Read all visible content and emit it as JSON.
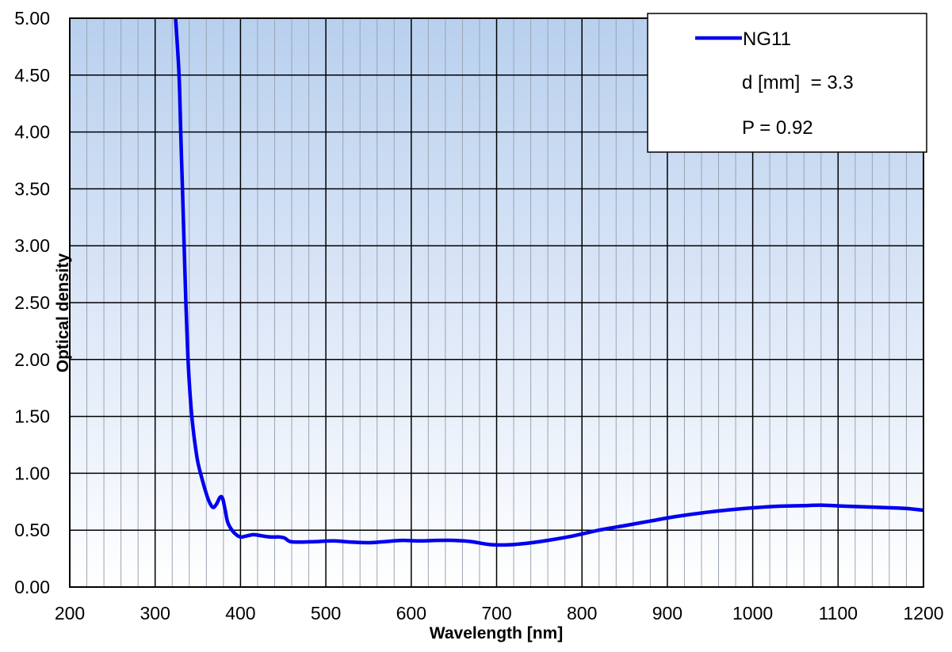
{
  "chart_data": {
    "type": "line",
    "xlabel": "Wavelength [nm]",
    "ylabel": "Optical density",
    "xlim": [
      200,
      1200
    ],
    "ylim": [
      0,
      5
    ],
    "x_ticks": [
      "200",
      "300",
      "400",
      "500",
      "600",
      "700",
      "800",
      "900",
      "1000",
      "1100",
      "1200"
    ],
    "y_ticks": [
      "0.00",
      "0.50",
      "1.00",
      "1.50",
      "2.00",
      "2.50",
      "3.00",
      "3.50",
      "4.00",
      "4.50",
      "5.00"
    ],
    "x_minor_step": 20,
    "grid": true,
    "background": "vertical gradient light blue to white",
    "legend": {
      "position": "top-right",
      "entries": [
        "NG11"
      ],
      "annotations": [
        "d [mm]  = 3.3",
        "P = 0.92"
      ]
    },
    "series": [
      {
        "name": "NG11",
        "color": "#0000ee",
        "points": [
          [
            324,
            5.0
          ],
          [
            328,
            4.5
          ],
          [
            330,
            4.0
          ],
          [
            332,
            3.5
          ],
          [
            334,
            3.0
          ],
          [
            336,
            2.5
          ],
          [
            338,
            2.1
          ],
          [
            340,
            1.8
          ],
          [
            343,
            1.5
          ],
          [
            346,
            1.3
          ],
          [
            350,
            1.1
          ],
          [
            355,
            0.95
          ],
          [
            360,
            0.82
          ],
          [
            364,
            0.74
          ],
          [
            368,
            0.7
          ],
          [
            372,
            0.73
          ],
          [
            376,
            0.79
          ],
          [
            379,
            0.78
          ],
          [
            382,
            0.68
          ],
          [
            385,
            0.57
          ],
          [
            390,
            0.5
          ],
          [
            395,
            0.46
          ],
          [
            400,
            0.44
          ],
          [
            405,
            0.445
          ],
          [
            415,
            0.46
          ],
          [
            425,
            0.45
          ],
          [
            435,
            0.44
          ],
          [
            445,
            0.44
          ],
          [
            452,
            0.43
          ],
          [
            458,
            0.4
          ],
          [
            470,
            0.395
          ],
          [
            490,
            0.4
          ],
          [
            510,
            0.405
          ],
          [
            530,
            0.395
          ],
          [
            550,
            0.39
          ],
          [
            570,
            0.4
          ],
          [
            590,
            0.41
          ],
          [
            610,
            0.405
          ],
          [
            630,
            0.41
          ],
          [
            650,
            0.41
          ],
          [
            670,
            0.4
          ],
          [
            690,
            0.375
          ],
          [
            710,
            0.37
          ],
          [
            730,
            0.38
          ],
          [
            760,
            0.41
          ],
          [
            790,
            0.45
          ],
          [
            820,
            0.5
          ],
          [
            850,
            0.54
          ],
          [
            880,
            0.58
          ],
          [
            910,
            0.62
          ],
          [
            950,
            0.66
          ],
          [
            990,
            0.69
          ],
          [
            1030,
            0.71
          ],
          [
            1060,
            0.715
          ],
          [
            1080,
            0.72
          ],
          [
            1110,
            0.71
          ],
          [
            1150,
            0.7
          ],
          [
            1180,
            0.69
          ],
          [
            1200,
            0.675
          ]
        ]
      }
    ]
  }
}
